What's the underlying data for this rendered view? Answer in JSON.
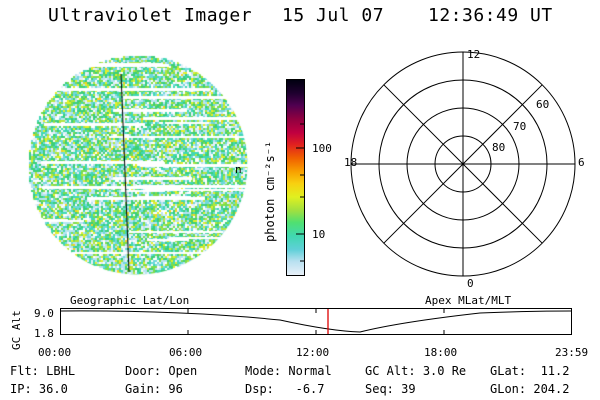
{
  "header": {
    "instrument": "Ultraviolet Imager",
    "date": "15 Jul 07",
    "time": "12:36:49 UT"
  },
  "imager": {
    "annotation": "n"
  },
  "colorbar": {
    "label": "photon cm⁻²s⁻¹",
    "tick_100": "100",
    "tick_10": "10",
    "colors": [
      "#e8f0f8",
      "#b8e0f0",
      "#60d0d8",
      "#40d8b0",
      "#50e070",
      "#a0e040",
      "#e0f020",
      "#f8d010",
      "#f8a000",
      "#f06000",
      "#e02020",
      "#c00040",
      "#900040",
      "#500050",
      "#200030",
      "#000010"
    ]
  },
  "polar": {
    "label_12": "12",
    "label_18": "18",
    "label_6": "6",
    "label_0": "0",
    "label_60": "60",
    "label_70": "70",
    "label_80": "80"
  },
  "timeline": {
    "left_caption": "Geographic Lat/Lon",
    "right_caption": "Apex MLat/MLT",
    "axis_label": "GC Alt",
    "y_top": "9.0",
    "y_bottom": "1.8",
    "ticks": [
      "00:00",
      "06:00",
      "12:00",
      "18:00",
      "23:59"
    ],
    "marker_color": "#dd0000"
  },
  "info": {
    "filter_label": "Flt:",
    "filter_value": "LBHL",
    "door_label": "Door:",
    "door_value": "Open",
    "mode_label": "Mode:",
    "mode_value": "Normal",
    "gcalt_label": "GC Alt:",
    "gcalt_value": "3.0 Re",
    "glat_label": "GLat:",
    "glat_value": "11.2",
    "ip_label": "IP:",
    "ip_value": "36.0",
    "gain_label": "Gain:",
    "gain_value": "96",
    "dsp_label": "Dsp:",
    "dsp_value": "-6.7",
    "seq_label": "Seq:",
    "seq_value": "39",
    "glon_label": "GLon:",
    "glon_value": "204.2"
  }
}
